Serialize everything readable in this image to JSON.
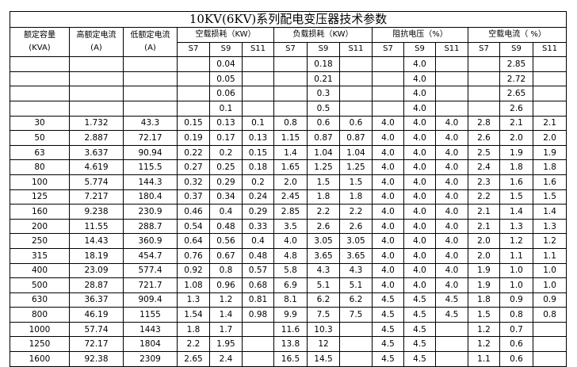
{
  "title": "10KV(6KV)系列配电变压器技术参数",
  "headers": {
    "capacity": [
      "额定容量",
      "(KVA)"
    ],
    "high_current": [
      "高额定电流",
      "(A)"
    ],
    "low_current": [
      "低额定电流",
      "(A)"
    ],
    "no_load_loss": "空载损耗（KW）",
    "load_loss": "负载损耗（KW）",
    "impedance_voltage": "阻抗电压（%）",
    "no_load_current": "空载电流（ %）",
    "sub": [
      "S7",
      "S9",
      "S11"
    ]
  },
  "rows": [
    [
      "",
      "",
      "",
      "",
      "0.04",
      "",
      "",
      "0.18",
      "",
      "",
      "4.0",
      "",
      "",
      "2.85",
      ""
    ],
    [
      "",
      "",
      "",
      "",
      "0.05",
      "",
      "",
      "0.21",
      "",
      "",
      "4.0",
      "",
      "",
      "2.72",
      ""
    ],
    [
      "",
      "",
      "",
      "",
      "0.06",
      "",
      "",
      "0.3",
      "",
      "",
      "4.0",
      "",
      "",
      "2.65",
      ""
    ],
    [
      "",
      "",
      "",
      "",
      "0.1",
      "",
      "",
      "0.5",
      "",
      "",
      "4.0",
      "",
      "",
      "2.6",
      ""
    ],
    [
      "30",
      "1.732",
      "43.3",
      "0.15",
      "0.13",
      "0.1",
      "0.8",
      "0.6",
      "0.6",
      "4.0",
      "4.0",
      "4.0",
      "2.8",
      "2.1",
      "2.1"
    ],
    [
      "50",
      "2.887",
      "72.17",
      "0.19",
      "0.17",
      "0.13",
      "1.15",
      "0.87",
      "0.87",
      "4.0",
      "4.0",
      "4.0",
      "2.6",
      "2.0",
      "2.0"
    ],
    [
      "63",
      "3.637",
      "90.94",
      "0.22",
      "0.2",
      "0.15",
      "1.4",
      "1.04",
      "1.04",
      "4.0",
      "4.0",
      "4.0",
      "2.5",
      "1.9",
      "1.9"
    ],
    [
      "80",
      "4.619",
      "115.5",
      "0.27",
      "0.25",
      "0.18",
      "1.65",
      "1.25",
      "1.25",
      "4.0",
      "4.0",
      "4.0",
      "2.4",
      "1.8",
      "1.8"
    ],
    [
      "100",
      "5.774",
      "144.3",
      "0.32",
      "0.29",
      "0.2",
      "2.0",
      "1.5",
      "1.5",
      "4.0",
      "4.0",
      "4.0",
      "2.3",
      "1.6",
      "1.6"
    ],
    [
      "125",
      "7.217",
      "180.4",
      "0.37",
      "0.34",
      "0.24",
      "2.45",
      "1.8",
      "1.8",
      "4.0",
      "4.0",
      "4.0",
      "2.2",
      "1.5",
      "1.5"
    ],
    [
      "160",
      "9.238",
      "230.9",
      "0.46",
      "0.4",
      "0.29",
      "2.85",
      "2.2",
      "2.2",
      "4.0",
      "4.0",
      "4.0",
      "2.1",
      "1.4",
      "1.4"
    ],
    [
      "200",
      "11.55",
      "288.7",
      "0.54",
      "0.48",
      "0.33",
      "3.5",
      "2.6",
      "2.6",
      "4.0",
      "4.0",
      "4.0",
      "2.1",
      "1.3",
      "1.3"
    ],
    [
      "250",
      "14.43",
      "360.9",
      "0.64",
      "0.56",
      "0.4",
      "4.0",
      "3.05",
      "3.05",
      "4.0",
      "4.0",
      "4.0",
      "2.0",
      "1.2",
      "1.2"
    ],
    [
      "315",
      "18.19",
      "454.7",
      "0.76",
      "0.67",
      "0.48",
      "4.8",
      "3.65",
      "3.65",
      "4.0",
      "4.0",
      "4.0",
      "2.0",
      "1.1",
      "1.1"
    ],
    [
      "400",
      "23.09",
      "577.4",
      "0.92",
      "0.8",
      "0.57",
      "5.8",
      "4.3",
      "4.3",
      "4.0",
      "4.0",
      "4.0",
      "1.9",
      "1.0",
      "1.0"
    ],
    [
      "500",
      "28.87",
      "721.7",
      "1.08",
      "0.96",
      "0.68",
      "6.9",
      "5.1",
      "5.1",
      "4.0",
      "4.0",
      "4.0",
      "1.9",
      "1.0",
      "1.0"
    ],
    [
      "630",
      "36.37",
      "909.4",
      "1.3",
      "1.2",
      "0.81",
      "8.1",
      "6.2",
      "6.2",
      "4.5",
      "4.5",
      "4.5",
      "1.8",
      "0.9",
      "0.9"
    ],
    [
      "800",
      "46.19",
      "1155",
      "1.54",
      "1.4",
      "0.98",
      "9.9",
      "7.5",
      "7.5",
      "4.5",
      "4.5",
      "4.5",
      "1.5",
      "0.8",
      "0.8"
    ],
    [
      "1000",
      "57.74",
      "1443",
      "1.8",
      "1.7",
      "",
      "11.6",
      "10.3",
      "",
      "4.5",
      "4.5",
      "",
      "1.2",
      "0.7",
      ""
    ],
    [
      "1250",
      "72.17",
      "1804",
      "2.2",
      "1.95",
      "",
      "13.8",
      "12",
      "",
      "4.5",
      "4.5",
      "",
      "1.2",
      "0.6",
      ""
    ],
    [
      "1600",
      "92.38",
      "2309",
      "2.65",
      "2.4",
      "",
      "16.5",
      "14.5",
      "",
      "4.5",
      "4.5",
      "",
      "1.1",
      "0.6",
      ""
    ]
  ]
}
